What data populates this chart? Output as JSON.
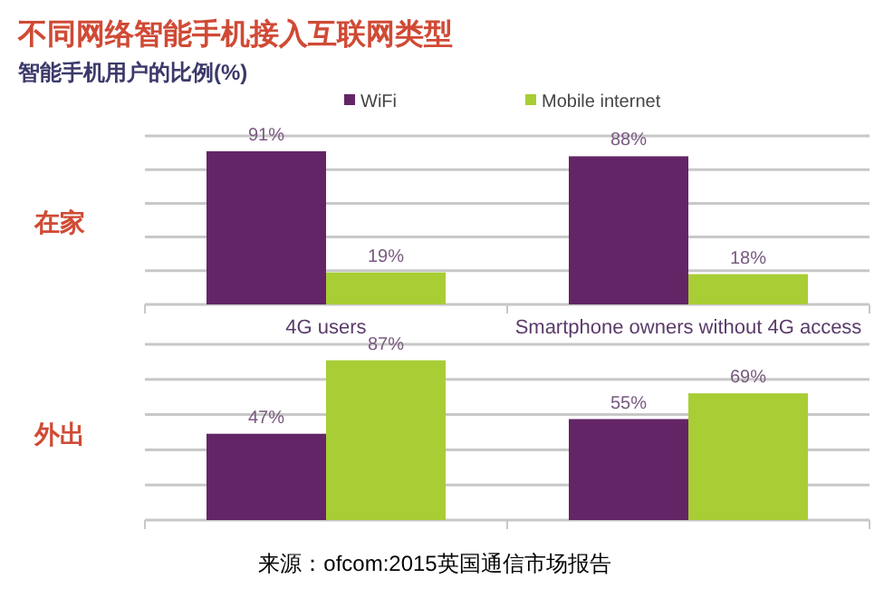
{
  "chart_data": [
    {
      "type": "bar",
      "title": "不同网络智能手机接入互联网类型",
      "subtitle": "智能手机用户的比例(%)",
      "ylabel": "在家",
      "categories": [
        "4G users",
        "Smartphone owners without 4G access"
      ],
      "series": [
        {
          "name": "WiFi",
          "color": "#642566",
          "values": [
            91,
            88
          ],
          "value_labels": [
            "91%",
            "88%"
          ]
        },
        {
          "name": "Mobile internet",
          "color": "#a8cd35",
          "values": [
            19,
            18
          ],
          "value_labels": [
            "19%",
            "18%"
          ]
        }
      ],
      "grid": "y",
      "legend": "top",
      "tick_labels": "x"
    },
    {
      "type": "bar",
      "ylabel": "外出",
      "annotations": [
        "来源：ofcom:2015英国通信市场报告"
      ],
      "categories": [
        null,
        null
      ],
      "series": [
        {
          "color": "#642566",
          "values": [
            47,
            55
          ],
          "value_labels": [
            "47%",
            "55%"
          ]
        },
        {
          "color": "#a8cd35",
          "values": [
            87,
            69
          ],
          "value_labels": [
            "87%",
            "69%"
          ]
        }
      ],
      "grid": "y",
      "tick_labels": false
    }
  ]
}
